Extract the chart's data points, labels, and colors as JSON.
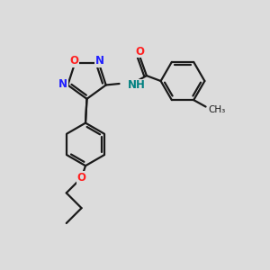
{
  "bg_color": "#dcdcdc",
  "bond_color": "#1a1a1a",
  "N_color": "#2020ff",
  "O_color": "#ff2020",
  "NH_color": "#008080",
  "lw": 1.6,
  "figsize": [
    3.0,
    3.0
  ],
  "dpi": 100,
  "xlim": [
    0,
    10
  ],
  "ylim": [
    0,
    10
  ]
}
